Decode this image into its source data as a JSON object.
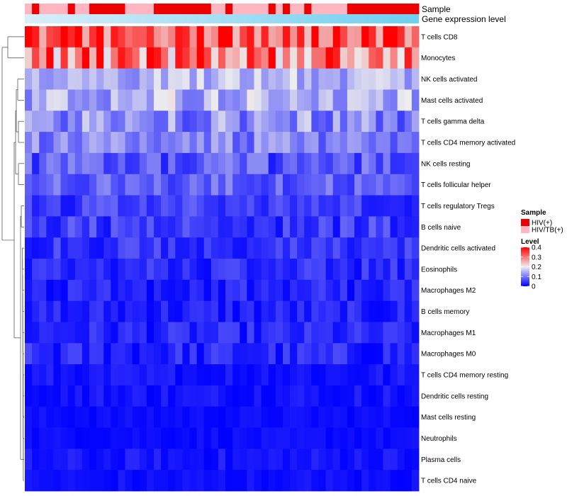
{
  "chart_data": {
    "type": "heatmap",
    "title": "",
    "n_columns": 55,
    "rows": [
      "T cells CD8",
      "Monocytes",
      "NK cells activated",
      "Mast cells activated",
      "T cells gamma delta",
      "T cells CD4 memory activated",
      "NK cells resting",
      "T cells follicular helper",
      "T cells regulatory  Tregs",
      "B cells naive",
      "Dendritic cells activated",
      "Eosinophils",
      "Macrophages M2",
      "B cells memory",
      "Macrophages M1",
      "Macrophages M0",
      "T cells CD4 memory resting",
      "Dendritic cells resting",
      "Mast cells resting",
      "Neutrophils",
      "Plasma cells",
      "T cells CD4 naive"
    ],
    "row_means": [
      0.34,
      0.3,
      0.15,
      0.15,
      0.11,
      0.11,
      0.07,
      0.08,
      0.05,
      0.05,
      0.04,
      0.035,
      0.03,
      0.025,
      0.03,
      0.03,
      0.015,
      0.015,
      0.01,
      0.01,
      0.015,
      0.01
    ],
    "row_spread": [
      0.1,
      0.12,
      0.05,
      0.06,
      0.07,
      0.05,
      0.05,
      0.04,
      0.035,
      0.04,
      0.035,
      0.03,
      0.03,
      0.03,
      0.03,
      0.035,
      0.02,
      0.02,
      0.01,
      0.01,
      0.02,
      0.015
    ],
    "sample_groups": [
      "HIV/TB(+)",
      "HIV(+)",
      "HIV/TB(+)",
      "HIV/TB(+)",
      "HIV/TB(+)",
      "HIV/TB(+)",
      "HIV(+)",
      "HIV/TB(+)",
      "HIV/TB(+)",
      "HIV(+)",
      "HIV(+)",
      "HIV(+)",
      "HIV(+)",
      "HIV(+)",
      "HIV/TB(+)",
      "HIV/TB(+)",
      "HIV/TB(+)",
      "HIV/TB(+)",
      "HIV(+)",
      "HIV(+)",
      "HIV(+)",
      "HIV(+)",
      "HIV(+)",
      "HIV(+)",
      "HIV(+)",
      "HIV(+)",
      "HIV/TB(+)",
      "HIV/TB(+)",
      "HIV(+)",
      "HIV/TB(+)",
      "HIV/TB(+)",
      "HIV/TB(+)",
      "HIV/TB(+)",
      "HIV/TB(+)",
      "HIV(+)",
      "HIV/TB(+)",
      "HIV(+)",
      "HIV/TB(+)",
      "HIV/TB(+)",
      "HIV(+)",
      "HIV/TB(+)",
      "HIV/TB(+)",
      "HIV/TB(+)",
      "HIV/TB(+)",
      "HIV/TB(+)",
      "HIV(+)",
      "HIV(+)",
      "HIV(+)",
      "HIV(+)",
      "HIV(+)",
      "HIV(+)",
      "HIV(+)",
      "HIV(+)",
      "HIV(+)",
      "HIV(+)"
    ],
    "annotations": {
      "sample_label": "Sample",
      "gene_label": "Gene expression level"
    },
    "legend": {
      "sample_title": "Sample",
      "sample_entries": [
        {
          "label": "HIV(+)",
          "color": "#ee0000"
        },
        {
          "label": "HIV/TB(+)",
          "color": "#ffb6c1"
        }
      ],
      "level_title": "Level",
      "level_ticks": [
        {
          "value": 0.4,
          "label": "0.4"
        },
        {
          "value": 0.3,
          "label": "0.3"
        },
        {
          "value": 0.2,
          "label": "0.2"
        },
        {
          "value": 0.1,
          "label": "0.1"
        },
        {
          "value": 0,
          "label": "0"
        }
      ],
      "level_range": [
        0,
        0.4
      ]
    },
    "colors": {
      "low": "#0000ff",
      "mid": "#eeeeee",
      "high": "#ff0000",
      "gene_bar_left": "#d9eef8",
      "gene_bar_right": "#6ecff0"
    }
  }
}
